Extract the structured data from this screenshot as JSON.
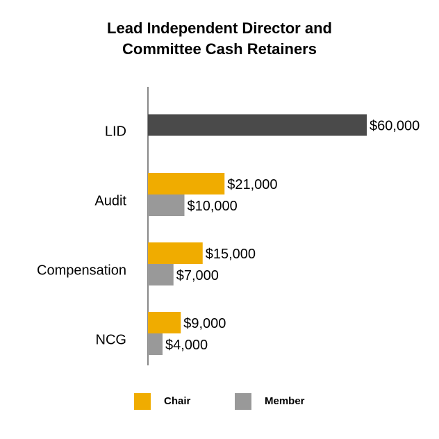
{
  "chart_data": {
    "type": "bar",
    "orientation": "horizontal",
    "title": "Lead Independent Director and Committee Cash Retainers",
    "categories": [
      "LID",
      "Audit",
      "Compensation",
      "NCG"
    ],
    "series": [
      {
        "color": "#4a4a4a",
        "values": [
          60000,
          null,
          null,
          null
        ],
        "value_labels": [
          "$60,000",
          null,
          null,
          null
        ]
      },
      {
        "name": "Chair",
        "color": "#f0ac00",
        "values": [
          null,
          21000,
          15000,
          9000
        ],
        "value_labels": [
          null,
          "$21,000",
          "$15,000",
          "$9,000"
        ]
      },
      {
        "name": "Member",
        "color": "#999999",
        "values": [
          null,
          10000,
          7000,
          4000
        ],
        "value_labels": [
          null,
          "$10,000",
          "$7,000",
          "$4,000"
        ]
      }
    ],
    "xlim": [
      0,
      60000
    ],
    "legend": "bottom"
  }
}
